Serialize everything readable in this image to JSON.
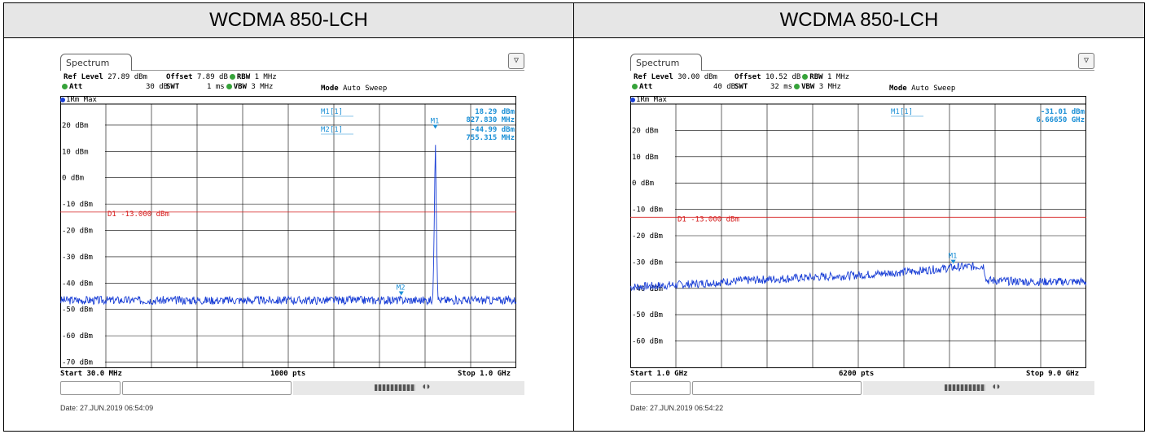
{
  "panels": [
    {
      "header": "WCDMA 850-LCH",
      "tab": "Spectrum",
      "ref_level": {
        "label": "Ref Level",
        "value": "27.89 dBm"
      },
      "offset": {
        "label": "Offset",
        "value": "7.89 dB"
      },
      "rbw": {
        "label": "RBW",
        "value": "1 MHz"
      },
      "att": {
        "label": "Att",
        "value": "30 dB"
      },
      "swt": {
        "label": "SWT",
        "value": "1 ms"
      },
      "vbw": {
        "label": "VBW",
        "value": "3 MHz"
      },
      "mode": {
        "label": "Mode",
        "value": "Auto Sweep"
      },
      "trace_label": "1Rm Max",
      "marker_readouts": [
        {
          "name": "M1[1]",
          "level": "18.29 dBm",
          "freq": "827.830 MHz"
        },
        {
          "name": "M2[1]",
          "level": "-44.99 dBm",
          "freq": "755.315 MHz"
        }
      ],
      "y_tick_labels": [
        "20 dBm",
        "10 dBm",
        "0 dBm",
        "-10 dBm",
        "-20 dBm",
        "-30 dBm",
        "-40 dBm",
        "-50 dBm",
        "-60 dBm",
        "-70 dBm"
      ],
      "display_line_label": "D1  -13.000 dBm",
      "start": "Start 30.0 MHz",
      "pts": "1000 pts",
      "stop": "Stop 1.0 GHz",
      "date": "Date: 27.JUN.2019  06:54:09",
      "chart_data": {
        "type": "line",
        "x_unit": "MHz",
        "xlim": [
          30.0,
          1000.0
        ],
        "ylim": [
          -72,
          28
        ],
        "y_unit": "dBm",
        "display_line": -13.0,
        "noise_floor": -46.5,
        "markers": [
          {
            "label": "M1",
            "x": 827.83,
            "y": 18.29
          },
          {
            "label": "M2",
            "x": 755.315,
            "y": -44.99
          }
        ],
        "peak": {
          "x": 827.83,
          "y": 18.29,
          "width": 6
        }
      },
      "colors": {
        "trace": "#1a3fd6",
        "limit": "#d62020",
        "marker": "#1a8fd6"
      }
    },
    {
      "header": "WCDMA 850-LCH",
      "tab": "Spectrum",
      "ref_level": {
        "label": "Ref Level",
        "value": "30.00 dBm"
      },
      "offset": {
        "label": "Offset",
        "value": "10.52 dB"
      },
      "rbw": {
        "label": "RBW",
        "value": "1 MHz"
      },
      "att": {
        "label": "Att",
        "value": "40 dB"
      },
      "swt": {
        "label": "SWT",
        "value": "32 ms"
      },
      "vbw": {
        "label": "VBW",
        "value": "3 MHz"
      },
      "mode": {
        "label": "Mode",
        "value": "Auto Sweep"
      },
      "trace_label": "1Rm Max",
      "marker_readouts": [
        {
          "name": "M1[1]",
          "level": "-31.01 dBm",
          "freq": "6.66650 GHz"
        }
      ],
      "y_tick_labels": [
        "20 dBm",
        "10 dBm",
        "0 dBm",
        "-10 dBm",
        "-20 dBm",
        "-30 dBm",
        "-40 dBm",
        "-50 dBm",
        "-60 dBm"
      ],
      "display_line_label": "D1  -13.000 dBm",
      "start": "Start 1.0 GHz",
      "pts": "6200 pts",
      "stop": "Stop 9.0 GHz",
      "date": "Date: 27.JUN.2019  06:54:22",
      "chart_data": {
        "type": "line",
        "x_unit": "GHz",
        "xlim": [
          1.0,
          9.0
        ],
        "ylim": [
          -70,
          30
        ],
        "y_unit": "dBm",
        "display_line": -13.0,
        "noise_floor_profile": [
          [
            1.0,
            -39.5
          ],
          [
            2.0,
            -38.5
          ],
          [
            3.0,
            -37.0
          ],
          [
            4.0,
            -36.0
          ],
          [
            5.0,
            -35.0
          ],
          [
            6.0,
            -33.5
          ],
          [
            6.7,
            -32.0
          ],
          [
            7.2,
            -31.5
          ],
          [
            7.25,
            -37.0
          ],
          [
            8.0,
            -37.5
          ],
          [
            9.0,
            -37.5
          ]
        ],
        "markers": [
          {
            "label": "M1",
            "x": 6.6665,
            "y": -31.01
          }
        ]
      },
      "colors": {
        "trace": "#1a3fd6",
        "limit": "#d62020",
        "marker": "#1a8fd6"
      }
    }
  ]
}
